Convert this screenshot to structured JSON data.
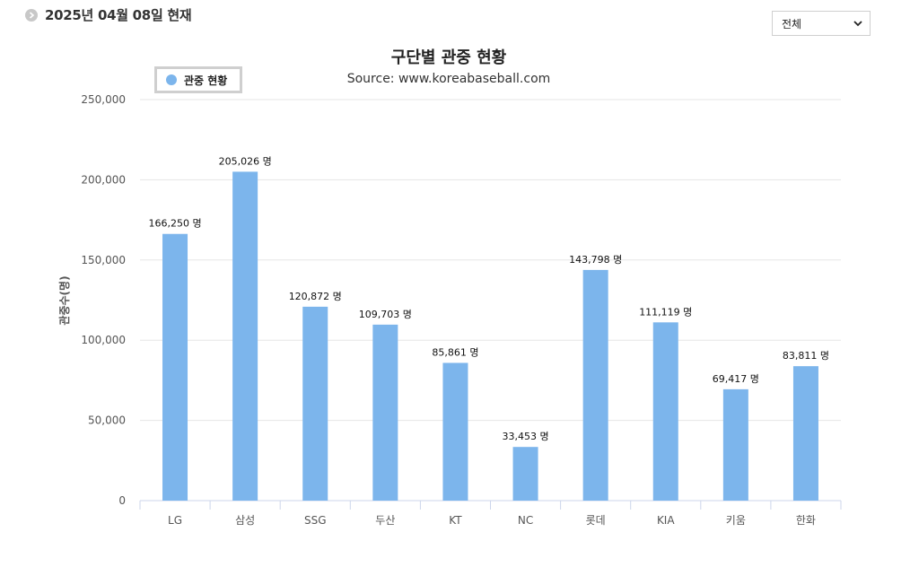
{
  "header": {
    "date_text": "2025년 04월 08일 현재"
  },
  "filter": {
    "selected": "전체"
  },
  "chart_data": {
    "type": "bar",
    "title": "구단별 관중 현황",
    "subtitle": "Source: www.koreabaseball.com",
    "legend": "관중 현황",
    "legend_placement": "top-left",
    "xlabel": "",
    "ylabel": "관중수(명)",
    "ylim": [
      0,
      250000
    ],
    "yticks": [
      "0",
      "50,000",
      "100,000",
      "150,000",
      "200,000",
      "250,000"
    ],
    "ytick_values": [
      0,
      50000,
      100000,
      150000,
      200000,
      250000
    ],
    "categories": [
      "LG",
      "삼성",
      "SSG",
      "두산",
      "KT",
      "NC",
      "롯데",
      "KIA",
      "키움",
      "한화"
    ],
    "values": [
      166250,
      205026,
      120872,
      109703,
      85861,
      33453,
      143798,
      111119,
      69417,
      83811
    ],
    "data_labels": [
      "166,250 명",
      "205,026 명",
      "120,872 명",
      "109,703 명",
      "85,861 명",
      "33,453 명",
      "143,798 명",
      "111,119 명",
      "69,417 명",
      "83,811 명"
    ],
    "bar_color": "#7cb5ec",
    "grid": true
  }
}
